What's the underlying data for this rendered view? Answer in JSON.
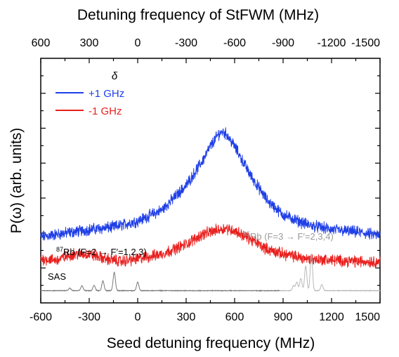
{
  "chart_data": {
    "type": "line",
    "xlabel": "Seed detuning frequency (MHz)",
    "ylabel": "P(ω) (arb. units)",
    "top_xlabel": "Detuning frequency of StFWM (MHz)",
    "xlim": [
      -600,
      1500
    ],
    "x_ticks": [
      "-600",
      "-300",
      "0",
      "300",
      "600",
      "900",
      "1200",
      "1500"
    ],
    "top_x_ticks": [
      "600",
      "300",
      "0",
      "-300",
      "-600",
      "-900",
      "-1200",
      "-1500"
    ],
    "legend_title": "δ",
    "grid": false,
    "series": [
      {
        "name": "+1 GHz",
        "color": "#1f3fe6",
        "x": [
          -600,
          -450,
          -300,
          -150,
          0,
          150,
          300,
          400,
          450,
          500,
          525,
          550,
          600,
          700,
          800,
          900,
          1050,
          1200,
          1350,
          1500
        ],
        "y": [
          0.27,
          0.285,
          0.3,
          0.31,
          0.335,
          0.38,
          0.48,
          0.58,
          0.64,
          0.69,
          0.7,
          0.69,
          0.64,
          0.52,
          0.42,
          0.36,
          0.32,
          0.3,
          0.29,
          0.275
        ]
      },
      {
        "name": "-1 GHz",
        "color": "#e8201e",
        "x": [
          -600,
          -500,
          -400,
          -300,
          -200,
          -100,
          0,
          150,
          300,
          400,
          500,
          550,
          600,
          700,
          800,
          900,
          1050,
          1200,
          1350,
          1500
        ],
        "y": [
          0.18,
          0.175,
          0.2,
          0.2,
          0.18,
          0.17,
          0.18,
          0.2,
          0.24,
          0.28,
          0.3,
          0.305,
          0.295,
          0.26,
          0.22,
          0.2,
          0.18,
          0.175,
          0.17,
          0.168
        ]
      },
      {
        "name": "SAS",
        "color": "#7a7a7a",
        "baseline": 0.05,
        "peaks": [
          {
            "x": -420,
            "h": 0.01
          },
          {
            "x": -345,
            "h": 0.02
          },
          {
            "x": -270,
            "h": 0.022
          },
          {
            "x": -215,
            "h": 0.04
          },
          {
            "x": -145,
            "h": 0.075
          },
          {
            "x": 0,
            "h": 0.035
          }
        ]
      },
      {
        "name": "SAS 85Rb",
        "color": "#b8b8b8",
        "baseline": 0.05,
        "peaks": [
          {
            "x": 965,
            "h": 0.02
          },
          {
            "x": 985,
            "h": 0.035
          },
          {
            "x": 1010,
            "h": 0.05
          },
          {
            "x": 1040,
            "h": 0.1
          },
          {
            "x": 1075,
            "h": 0.15
          },
          {
            "x": 1140,
            "h": 0.025
          }
        ]
      }
    ],
    "annotations": {
      "sas_label": "SAS",
      "rb87_label": "87Rb (F=2 → F′=1,2,3)",
      "rb85_label": "85Rb (F=3 → F′=2,3,4)"
    }
  }
}
